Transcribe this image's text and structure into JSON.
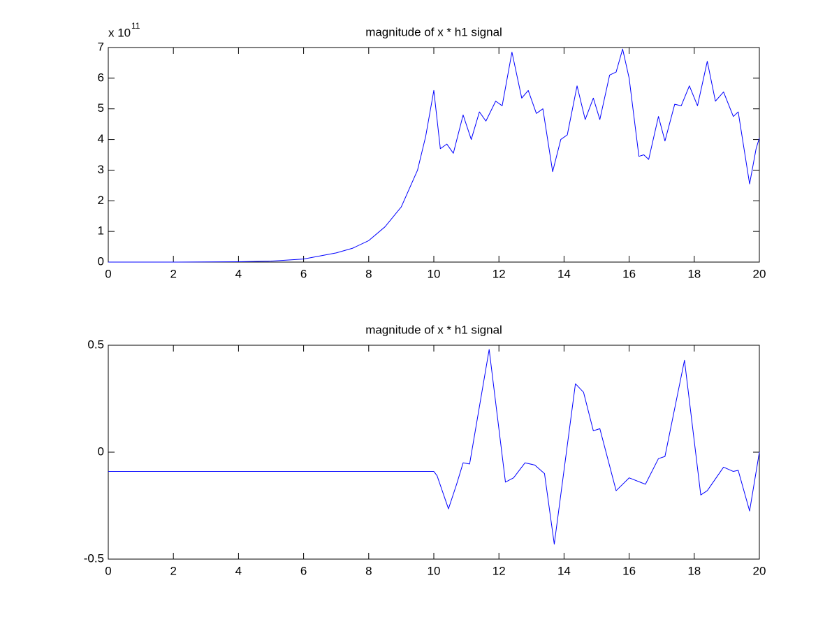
{
  "chart_data": [
    {
      "type": "line",
      "title": "magnitude of x * h1 signal",
      "axis_multiplier": "x 10",
      "axis_exponent": "11",
      "x": [
        0,
        2,
        4,
        5,
        6,
        7,
        7.5,
        8,
        8.5,
        9,
        9.5,
        9.75,
        10,
        10.2,
        10.4,
        10.6,
        10.9,
        11.15,
        11.4,
        11.6,
        11.9,
        12.1,
        12.4,
        12.7,
        12.9,
        13.15,
        13.35,
        13.65,
        13.9,
        14.1,
        14.4,
        14.65,
        14.9,
        15.1,
        15.4,
        15.6,
        15.8,
        16.0,
        16.3,
        16.45,
        16.6,
        16.9,
        17.1,
        17.4,
        17.6,
        17.85,
        18.1,
        18.4,
        18.65,
        18.9,
        19.2,
        19.35,
        19.7,
        19.9,
        20
      ],
      "values": [
        0,
        0,
        0.01,
        0.03,
        0.1,
        0.3,
        0.45,
        0.7,
        1.15,
        1.8,
        3.0,
        4.1,
        5.6,
        3.7,
        3.85,
        3.55,
        4.8,
        4.0,
        4.9,
        4.6,
        5.25,
        5.1,
        6.85,
        5.35,
        5.6,
        4.85,
        5.0,
        2.95,
        4.0,
        4.15,
        5.75,
        4.65,
        5.35,
        4.65,
        6.1,
        6.2,
        6.95,
        6.0,
        3.45,
        3.5,
        3.35,
        4.75,
        3.95,
        5.15,
        5.1,
        5.75,
        5.1,
        6.55,
        5.25,
        5.55,
        4.75,
        4.9,
        2.55,
        3.7,
        4.05
      ],
      "color": "#0000ff",
      "xlim": [
        0,
        20
      ],
      "ylim": [
        0,
        7
      ],
      "xticks": [
        0,
        2,
        4,
        6,
        8,
        10,
        12,
        14,
        16,
        18,
        20
      ],
      "yticks": [
        0,
        1,
        2,
        3,
        4,
        5,
        6,
        7
      ]
    },
    {
      "type": "line",
      "title": "magnitude of x * h1 signal",
      "x": [
        0,
        10,
        10.1,
        10.45,
        10.7,
        10.9,
        11.1,
        11.7,
        12.2,
        12.45,
        12.8,
        13.1,
        13.4,
        13.7,
        14.35,
        14.6,
        14.9,
        15.1,
        15.6,
        16.0,
        16.5,
        16.9,
        17.1,
        17.7,
        18.2,
        18.4,
        18.9,
        19.2,
        19.35,
        19.7,
        20
      ],
      "values": [
        -0.09,
        -0.09,
        -0.11,
        -0.265,
        -0.15,
        -0.05,
        -0.055,
        0.48,
        -0.14,
        -0.12,
        -0.05,
        -0.06,
        -0.1,
        -0.43,
        0.32,
        0.28,
        0.1,
        0.11,
        -0.18,
        -0.12,
        -0.15,
        -0.03,
        -0.02,
        0.43,
        -0.2,
        -0.18,
        -0.07,
        -0.09,
        -0.085,
        -0.275,
        0.0
      ],
      "color": "#0000ff",
      "xlim": [
        0,
        20
      ],
      "ylim": [
        -0.5,
        0.5
      ],
      "xticks": [
        0,
        2,
        4,
        6,
        8,
        10,
        12,
        14,
        16,
        18,
        20
      ],
      "yticks": [
        -0.5,
        0,
        0.5
      ]
    }
  ]
}
